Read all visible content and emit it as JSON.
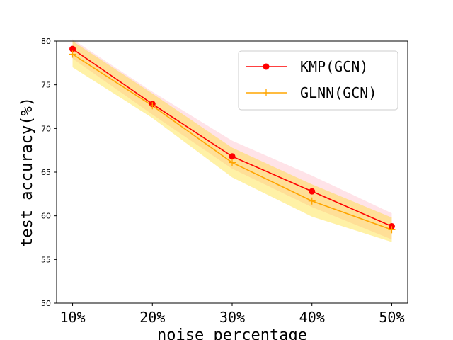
{
  "chart_data": {
    "type": "line",
    "title": "",
    "xlabel": "noise percentage",
    "ylabel": "test accuracy(%)",
    "categories": [
      "10%",
      "20%",
      "30%",
      "40%",
      "50%"
    ],
    "x": [
      10,
      20,
      30,
      40,
      50
    ],
    "xlim": [
      8,
      52
    ],
    "ylim": [
      50,
      80
    ],
    "yticks": [
      50,
      55,
      60,
      65,
      70,
      75,
      80
    ],
    "grid": false,
    "legend_position": "upper-right",
    "series": [
      {
        "name": "KMP(GCN)",
        "color": "#ff0000",
        "band_color": "#ffc0cb",
        "marker": "circle",
        "values": [
          79.1,
          72.8,
          66.8,
          62.8,
          58.8
        ],
        "lower": [
          78.0,
          71.6,
          65.4,
          61.0,
          57.3
        ],
        "upper": [
          80.2,
          74.2,
          68.6,
          64.6,
          60.3
        ]
      },
      {
        "name": "GLNN(GCN)",
        "color": "#ffa500",
        "band_color": "#ffd700",
        "marker": "plus",
        "values": [
          78.5,
          72.6,
          66.1,
          61.7,
          58.4
        ],
        "lower": [
          77.0,
          71.2,
          64.4,
          59.9,
          57.0
        ],
        "upper": [
          80.0,
          74.0,
          67.8,
          63.6,
          59.8
        ]
      }
    ]
  }
}
